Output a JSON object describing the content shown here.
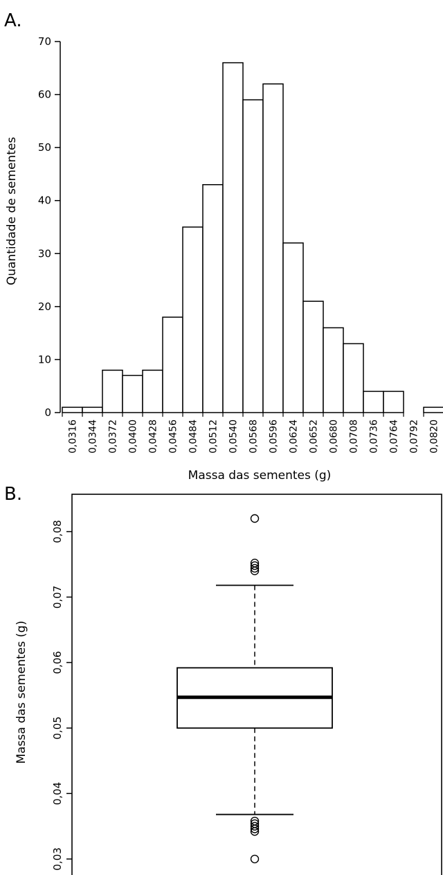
{
  "chart_data": [
    {
      "panel": "A.",
      "type": "bar",
      "xlabel": "Massa das sementes (g)",
      "ylabel": "Quantidade de sementes",
      "ylim": [
        0,
        70
      ],
      "yticks": [
        "0",
        "10",
        "20",
        "30",
        "40",
        "50",
        "60",
        "70"
      ],
      "categories": [
        "0,0316",
        "0,0344",
        "0,0372",
        "0,0400",
        "0,0428",
        "0,0456",
        "0,0484",
        "0,0512",
        "0,0540",
        "0,0568",
        "0,0596",
        "0,0624",
        "0,0652",
        "0,0680",
        "0,0708",
        "0,0736",
        "0,0764",
        "0,0792",
        "0,0820"
      ],
      "values": [
        1,
        1,
        8,
        7,
        8,
        18,
        35,
        43,
        66,
        59,
        62,
        32,
        21,
        16,
        13,
        4,
        4,
        0,
        1
      ]
    },
    {
      "panel": "B.",
      "type": "box",
      "ylabel": "Massa das sementes (g)",
      "yticks": [
        "0,03",
        "0,04",
        "0,05",
        "0,06",
        "0,07",
        "0,08"
      ],
      "ytick_values": [
        0.03,
        0.04,
        0.05,
        0.06,
        0.07,
        0.08
      ],
      "ylim": [
        0.0265,
        0.0857
      ],
      "box": {
        "whisker_low": 0.0368,
        "q1": 0.05,
        "median": 0.0547,
        "q3": 0.0592,
        "whisker_high": 0.0718
      },
      "outliers": [
        0.03,
        0.0342,
        0.0346,
        0.035,
        0.0354,
        0.0358,
        0.074,
        0.0744,
        0.0748,
        0.0752,
        0.082
      ]
    }
  ]
}
